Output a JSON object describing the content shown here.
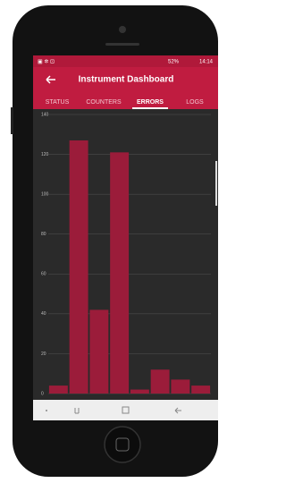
{
  "status_bar": {
    "battery": "52%",
    "time": "14:14"
  },
  "app_bar": {
    "title": "Instrument Dashboard"
  },
  "tabs": [
    "STATUS",
    "COUNTERS",
    "ERRORS",
    "LOGS"
  ],
  "chart_data": {
    "type": "bar",
    "categories": [
      null,
      null,
      null,
      null,
      null,
      null,
      null,
      null
    ],
    "values": [
      4,
      127,
      42,
      121,
      2,
      12,
      7,
      4
    ],
    "color": "#9b1c3a",
    "ylim": [
      0,
      140
    ],
    "yticks": [
      0,
      20,
      40,
      60,
      80,
      100,
      120,
      140
    ],
    "grid": true
  }
}
